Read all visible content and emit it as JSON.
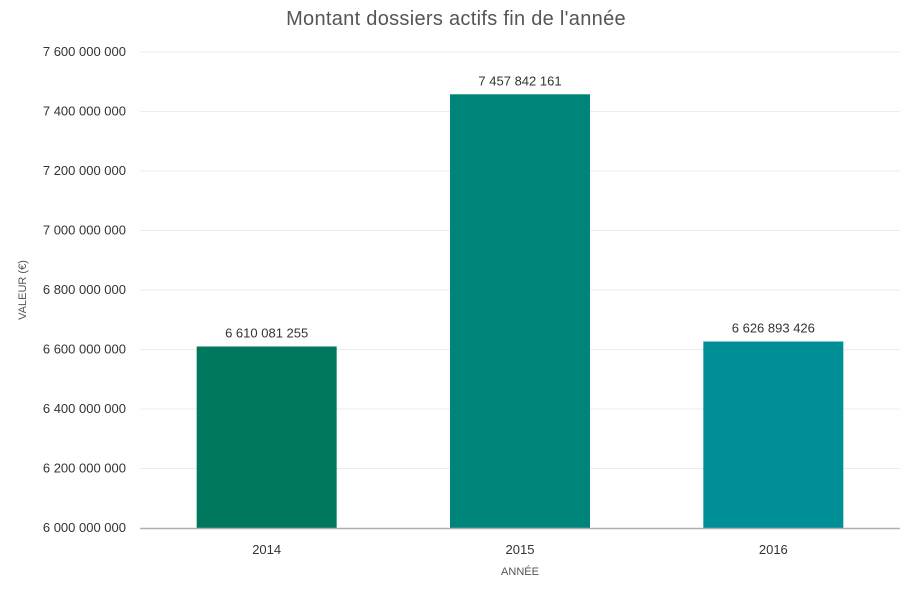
{
  "chart_data": {
    "type": "bar",
    "title": "Montant dossiers actifs fin de l'année",
    "xlabel": "ANNÉE",
    "ylabel": "VALEUR (€)",
    "categories": [
      "2014",
      "2015",
      "2016"
    ],
    "values": [
      6610081255,
      7457842161,
      6626893426
    ],
    "value_labels": [
      "6 610 081 255",
      "7 457 842 161",
      "6 626 893 426"
    ],
    "colors": [
      "#00785e",
      "#00857a",
      "#008e97"
    ],
    "ylim": [
      6000000000,
      7600000000
    ],
    "yticks": [
      6000000000,
      6200000000,
      6400000000,
      6600000000,
      6800000000,
      7000000000,
      7200000000,
      7400000000,
      7600000000
    ],
    "ytick_labels": [
      "6 000 000 000",
      "6 200 000 000",
      "6 400 000 000",
      "6 600 000 000",
      "6 800 000 000",
      "7 000 000 000",
      "7 200 000 000",
      "7 400 000 000",
      "7 600 000 000"
    ],
    "grid": true,
    "legend": "none"
  }
}
